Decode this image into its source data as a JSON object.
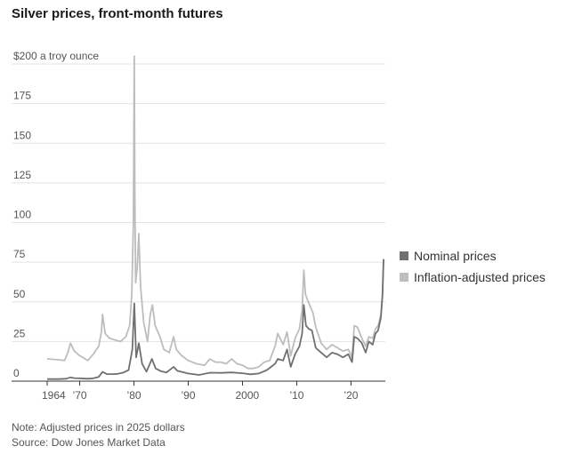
{
  "chart_data": {
    "type": "line",
    "title": "Silver prices, front-month futures",
    "ylabel": "$200 a troy ounce",
    "ylim": [
      0,
      200
    ],
    "xlim": [
      1964,
      2026
    ],
    "y_ticks": [
      {
        "value": 0,
        "label": "0"
      },
      {
        "value": 25,
        "label": "25"
      },
      {
        "value": 50,
        "label": "50"
      },
      {
        "value": 75,
        "label": "75"
      },
      {
        "value": 100,
        "label": "100"
      },
      {
        "value": 125,
        "label": "125"
      },
      {
        "value": 150,
        "label": "150"
      },
      {
        "value": 175,
        "label": "175"
      },
      {
        "value": 200,
        "label": "$200 a troy ounce"
      }
    ],
    "x_ticks": [
      {
        "value": 1964,
        "label": "1964"
      },
      {
        "value": 1970,
        "label": "’70"
      },
      {
        "value": 1980,
        "label": "’80"
      },
      {
        "value": 1990,
        "label": "’90"
      },
      {
        "value": 2000,
        "label": "2000"
      },
      {
        "value": 2010,
        "label": "’10"
      },
      {
        "value": 2020,
        "label": "’20"
      }
    ],
    "series": [
      {
        "name": "Inflation-adjusted prices",
        "color": "#bdbdbd",
        "points": [
          [
            1964.0,
            14
          ],
          [
            1966.0,
            13.5
          ],
          [
            1967.2,
            13
          ],
          [
            1967.8,
            18
          ],
          [
            1968.3,
            24
          ],
          [
            1969.0,
            19
          ],
          [
            1970.0,
            16
          ],
          [
            1971.5,
            13
          ],
          [
            1972.5,
            17
          ],
          [
            1973.5,
            22
          ],
          [
            1974.0,
            31
          ],
          [
            1974.2,
            42
          ],
          [
            1974.7,
            30
          ],
          [
            1975.5,
            27
          ],
          [
            1976.5,
            26
          ],
          [
            1977.5,
            25
          ],
          [
            1978.5,
            28
          ],
          [
            1979.2,
            35
          ],
          [
            1979.6,
            55
          ],
          [
            1979.9,
            100
          ],
          [
            1980.05,
            205
          ],
          [
            1980.15,
            120
          ],
          [
            1980.3,
            62
          ],
          [
            1980.6,
            72
          ],
          [
            1980.9,
            93
          ],
          [
            1981.2,
            60
          ],
          [
            1981.8,
            37
          ],
          [
            1982.5,
            25
          ],
          [
            1983.0,
            42
          ],
          [
            1983.4,
            48
          ],
          [
            1983.9,
            35
          ],
          [
            1984.8,
            28
          ],
          [
            1985.5,
            20
          ],
          [
            1986.5,
            18
          ],
          [
            1987.3,
            28
          ],
          [
            1987.8,
            20
          ],
          [
            1988.8,
            16
          ],
          [
            1990.0,
            13
          ],
          [
            1991.5,
            11
          ],
          [
            1993.0,
            10
          ],
          [
            1994.0,
            14
          ],
          [
            1995.0,
            12
          ],
          [
            1996.0,
            12
          ],
          [
            1997.0,
            11
          ],
          [
            1998.0,
            14
          ],
          [
            1999.0,
            11
          ],
          [
            2000.0,
            10
          ],
          [
            2001.0,
            8
          ],
          [
            2002.0,
            8
          ],
          [
            2003.0,
            9
          ],
          [
            2004.0,
            12
          ],
          [
            2005.0,
            13
          ],
          [
            2006.0,
            22
          ],
          [
            2006.5,
            30
          ],
          [
            2007.5,
            23
          ],
          [
            2008.2,
            31
          ],
          [
            2008.9,
            16
          ],
          [
            2009.7,
            27
          ],
          [
            2010.5,
            33
          ],
          [
            2011.0,
            45
          ],
          [
            2011.3,
            70
          ],
          [
            2011.6,
            55
          ],
          [
            2011.9,
            52
          ],
          [
            2012.5,
            47
          ],
          [
            2013.0,
            43
          ],
          [
            2013.5,
            34
          ],
          [
            2014.5,
            24
          ],
          [
            2015.5,
            20
          ],
          [
            2016.5,
            23
          ],
          [
            2017.5,
            21
          ],
          [
            2018.5,
            19
          ],
          [
            2019.5,
            20
          ],
          [
            2020.2,
            15
          ],
          [
            2020.6,
            35
          ],
          [
            2021.2,
            34
          ],
          [
            2022.0,
            27
          ],
          [
            2022.7,
            22
          ],
          [
            2023.3,
            28
          ],
          [
            2024.0,
            27
          ],
          [
            2024.5,
            33
          ],
          [
            2025.0,
            35
          ],
          [
            2025.5,
            42
          ],
          [
            2025.8,
            55
          ],
          [
            2026.0,
            76
          ]
        ]
      },
      {
        "name": "Nominal prices",
        "color": "#707070",
        "points": [
          [
            1964.0,
            1.3
          ],
          [
            1966.0,
            1.3
          ],
          [
            1967.5,
            1.5
          ],
          [
            1968.3,
            2.4
          ],
          [
            1969.0,
            1.9
          ],
          [
            1970.0,
            1.8
          ],
          [
            1971.5,
            1.5
          ],
          [
            1972.5,
            1.8
          ],
          [
            1973.5,
            2.7
          ],
          [
            1974.2,
            5.8
          ],
          [
            1975.0,
            4.4
          ],
          [
            1976.0,
            4.4
          ],
          [
            1977.0,
            4.6
          ],
          [
            1978.0,
            5.4
          ],
          [
            1979.0,
            7
          ],
          [
            1979.7,
            20
          ],
          [
            1980.05,
            49
          ],
          [
            1980.4,
            15
          ],
          [
            1980.9,
            24
          ],
          [
            1981.5,
            11
          ],
          [
            1982.3,
            6
          ],
          [
            1983.3,
            14
          ],
          [
            1984.0,
            8
          ],
          [
            1985.0,
            6.2
          ],
          [
            1986.0,
            5.5
          ],
          [
            1987.3,
            9
          ],
          [
            1988.0,
            6.5
          ],
          [
            1990.0,
            4.8
          ],
          [
            1992.0,
            3.9
          ],
          [
            1994.0,
            5.3
          ],
          [
            1996.0,
            5.2
          ],
          [
            1998.0,
            5.5
          ],
          [
            2000.0,
            5
          ],
          [
            2001.5,
            4.3
          ],
          [
            2003.0,
            4.8
          ],
          [
            2004.5,
            7
          ],
          [
            2006.0,
            11
          ],
          [
            2006.5,
            14
          ],
          [
            2007.5,
            13
          ],
          [
            2008.2,
            20
          ],
          [
            2008.9,
            9
          ],
          [
            2009.7,
            17
          ],
          [
            2010.5,
            22
          ],
          [
            2011.0,
            30
          ],
          [
            2011.3,
            48
          ],
          [
            2011.7,
            35
          ],
          [
            2012.2,
            33
          ],
          [
            2012.8,
            32
          ],
          [
            2013.5,
            21
          ],
          [
            2014.5,
            18
          ],
          [
            2015.5,
            15
          ],
          [
            2016.5,
            18
          ],
          [
            2017.5,
            17
          ],
          [
            2018.5,
            15
          ],
          [
            2019.5,
            17
          ],
          [
            2020.2,
            12
          ],
          [
            2020.6,
            28
          ],
          [
            2021.2,
            27
          ],
          [
            2022.0,
            24
          ],
          [
            2022.7,
            18
          ],
          [
            2023.3,
            25
          ],
          [
            2024.0,
            23
          ],
          [
            2024.5,
            30
          ],
          [
            2025.0,
            32
          ],
          [
            2025.5,
            40
          ],
          [
            2025.8,
            54
          ],
          [
            2026.0,
            77
          ]
        ]
      }
    ],
    "legend": [
      {
        "label": "Nominal prices",
        "color": "#707070"
      },
      {
        "label": "Inflation-adjusted prices",
        "color": "#bdbdbd"
      }
    ],
    "legend_position": "right",
    "grid": true,
    "note": "Note: Adjusted prices in 2025 dollars",
    "source": "Source: Dow Jones Market Data"
  }
}
